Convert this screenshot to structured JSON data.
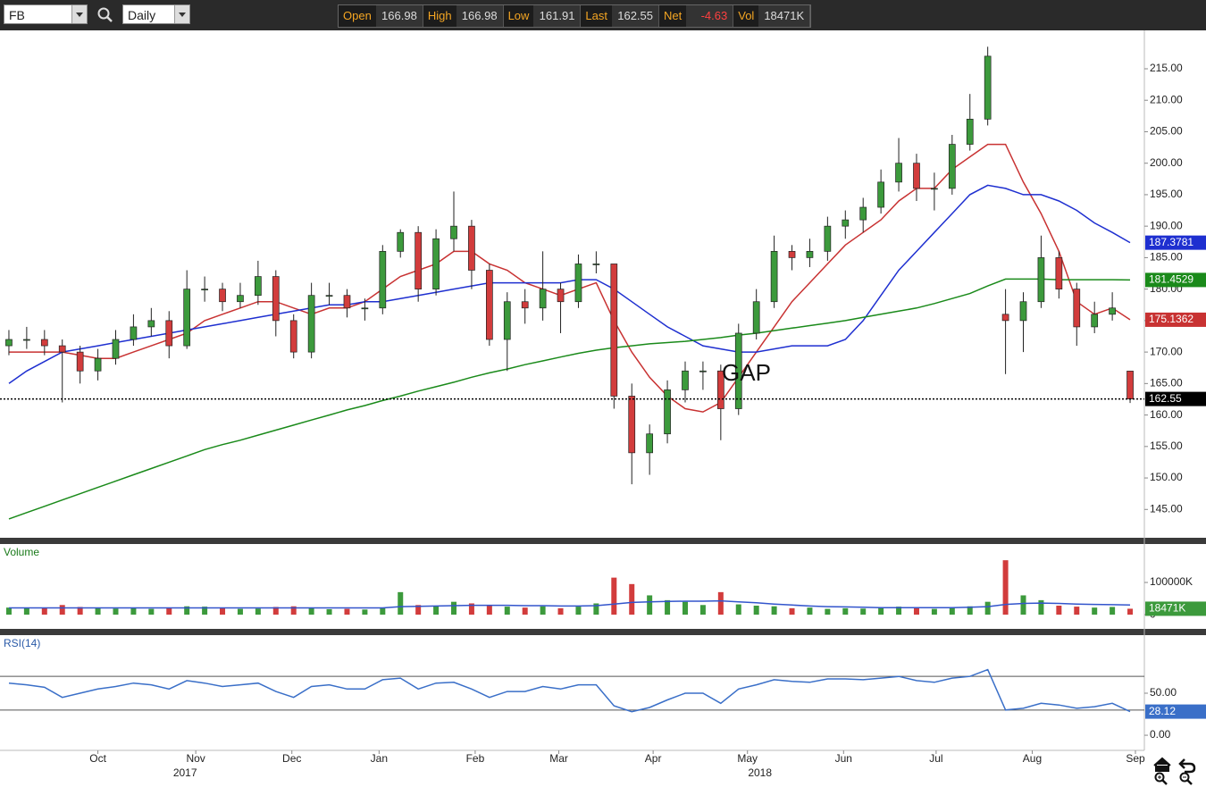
{
  "toolbar": {
    "symbol": "FB",
    "interval": "Daily",
    "fields": [
      {
        "label": "Open",
        "value": 166.98
      },
      {
        "label": "High",
        "value": 166.98
      },
      {
        "label": "Low",
        "value": 161.91
      },
      {
        "label": "Last",
        "value": 162.55
      },
      {
        "label": "Net",
        "value": -4.63
      },
      {
        "label": "Vol",
        "value": "18471K"
      }
    ]
  },
  "chart_data": [
    {
      "type": "candlestick",
      "categories": [
        null,
        null,
        null,
        null,
        null,
        null,
        null,
        null,
        null,
        null,
        null,
        null,
        null,
        null,
        null,
        null,
        null,
        null,
        null,
        null,
        null,
        null,
        null,
        null,
        null,
        null,
        null,
        null,
        null,
        null,
        null,
        null,
        null,
        null,
        null,
        null,
        null,
        null,
        null,
        null,
        null,
        null,
        null,
        null,
        null,
        null,
        null,
        null,
        null,
        null,
        null,
        null,
        null,
        null,
        null,
        null,
        null,
        null,
        null,
        null,
        null,
        null,
        null,
        null
      ],
      "open": [
        171,
        172,
        172,
        171,
        170,
        167,
        169,
        172,
        174,
        175,
        171,
        180,
        180,
        178,
        179,
        182,
        175,
        170,
        179,
        179,
        177,
        177,
        186,
        189,
        180,
        188,
        190,
        183,
        172,
        178,
        177,
        180,
        178,
        184,
        184,
        163,
        154,
        157,
        164,
        167,
        167,
        161,
        173,
        178,
        186,
        185,
        186,
        190,
        191,
        193,
        197,
        200,
        196,
        196,
        203,
        207,
        176,
        175,
        178,
        185,
        180,
        174,
        176,
        166.98
      ],
      "high": [
        173.5,
        174,
        173.5,
        172,
        171,
        170.5,
        173.5,
        176,
        177,
        176.5,
        183,
        182,
        181,
        181,
        184.5,
        183,
        176,
        181,
        181,
        180,
        178.5,
        187,
        189.5,
        190,
        189.5,
        195.5,
        191,
        184,
        179.5,
        180,
        186,
        181,
        185.5,
        186,
        184,
        165,
        158.5,
        165.5,
        168.5,
        168.5,
        168,
        174.5,
        180,
        188.5,
        187,
        188,
        191.5,
        192.5,
        194.5,
        199,
        204,
        201.5,
        198.5,
        204.5,
        211,
        218.5,
        180,
        179.5,
        188.5,
        186,
        181,
        178,
        179.5,
        166.98
      ],
      "low": [
        169.5,
        170.5,
        169.5,
        162,
        165,
        165.5,
        168,
        171,
        172.5,
        169,
        170.5,
        178,
        176.5,
        177,
        177.5,
        172.5,
        169,
        169,
        177.5,
        175.5,
        175,
        176,
        185,
        178,
        179,
        186,
        180,
        171,
        167,
        174.5,
        175,
        173,
        177,
        182.5,
        161,
        149,
        150.5,
        155.5,
        162,
        164,
        156,
        160,
        172,
        177,
        183,
        183.5,
        184.5,
        188,
        189,
        192,
        195.5,
        194,
        192.5,
        195,
        202,
        206,
        166.5,
        170,
        177,
        178.5,
        171,
        173,
        175,
        161.91
      ],
      "close": [
        172,
        172,
        171,
        170,
        167,
        169,
        172,
        174,
        175,
        171,
        180,
        180,
        178,
        179,
        182,
        175,
        170,
        179,
        179,
        177,
        177,
        186,
        189,
        180,
        188,
        190,
        183,
        172,
        178,
        177,
        180,
        178,
        184,
        184,
        163,
        154,
        157,
        164,
        167,
        167,
        161,
        173,
        178,
        186,
        185,
        186,
        190,
        191,
        193,
        197,
        200,
        196,
        196,
        203,
        207,
        217,
        175,
        178,
        185,
        180,
        174,
        176,
        177,
        162.55
      ],
      "up_color": "#3c9a3c",
      "down_color": "#d23c3c",
      "series": [
        {
          "color": "#c83232",
          "values": [
            170,
            170,
            170,
            170,
            169.5,
            169,
            169,
            170,
            171,
            172,
            173,
            175,
            176,
            177,
            178,
            178,
            177,
            176,
            177,
            177,
            178,
            180,
            182,
            183,
            184,
            186,
            186,
            184,
            183,
            181,
            180,
            179,
            180,
            181,
            175,
            170,
            166,
            163,
            161,
            160.5,
            162,
            166,
            170,
            174,
            178,
            181,
            184,
            187,
            189,
            191,
            194,
            196,
            196,
            199,
            201,
            203,
            203,
            197,
            192,
            186,
            178,
            176,
            177,
            175.1362
          ]
        },
        {
          "color": "#1e2fd0",
          "values": [
            165,
            167,
            168.5,
            170,
            170.5,
            171,
            171.5,
            172,
            172.5,
            173,
            173.5,
            174,
            174.5,
            175,
            175.5,
            176,
            176.5,
            177,
            177.5,
            177.5,
            178,
            178,
            178.5,
            179,
            179.5,
            180,
            180.5,
            181,
            181,
            181,
            181,
            181,
            181.5,
            181.5,
            180,
            178,
            176,
            174,
            172.5,
            171,
            170.5,
            170,
            170,
            170.5,
            171,
            171,
            171,
            172,
            175,
            179,
            183,
            186,
            189,
            192,
            195,
            196.5,
            196,
            195,
            195,
            194,
            192.5,
            190.5,
            189,
            187.3781
          ]
        },
        {
          "color": "#1a8a1a",
          "values": [
            143.5,
            144.5,
            145.5,
            146.5,
            147.5,
            148.5,
            149.5,
            150.5,
            151.5,
            152.5,
            153.5,
            154.5,
            155.3,
            156,
            156.8,
            157.6,
            158.4,
            159.2,
            160,
            160.8,
            161.5,
            162.3,
            163,
            163.8,
            164.5,
            165.2,
            166,
            166.7,
            167.3,
            168,
            168.6,
            169.2,
            169.8,
            170.3,
            170.7,
            171,
            171.3,
            171.5,
            171.7,
            172,
            172.3,
            172.7,
            173,
            173.4,
            173.8,
            174.2,
            174.6,
            175,
            175.5,
            176,
            176.5,
            177,
            177.7,
            178.5,
            179.3,
            180.5,
            181.6,
            181.6,
            181.6,
            181.5,
            181.5,
            181.5,
            181.5,
            181.4529
          ]
        }
      ],
      "ylim": [
        140.5,
        221.1
      ],
      "yticks": [
        {
          "value": 145,
          "label": "145.00"
        },
        {
          "value": 150,
          "label": "150.00"
        },
        {
          "value": 155,
          "label": "155.00"
        },
        {
          "value": 160,
          "label": "160.00"
        },
        {
          "value": 165,
          "label": "165.00"
        },
        {
          "value": 170,
          "label": "170.00"
        },
        {
          "value": 175,
          "label": "175.00"
        },
        {
          "value": 180,
          "label": "180.00"
        },
        {
          "value": 185,
          "label": "185.00"
        },
        {
          "value": 190,
          "label": "190.00"
        },
        {
          "value": 195,
          "label": "195.00"
        },
        {
          "value": 200,
          "label": "200.00"
        },
        {
          "value": 205,
          "label": "205.00"
        },
        {
          "value": 210,
          "label": "210.00"
        },
        {
          "value": 215,
          "label": "215.00"
        }
      ],
      "annotation": "GAP"
    },
    {
      "type": "bar",
      "title": "Volume",
      "categories": [
        null,
        null,
        null,
        null,
        null,
        null,
        null,
        null,
        null,
        null,
        null,
        null,
        null,
        null,
        null,
        null,
        null,
        null,
        null,
        null,
        null,
        null,
        null,
        null,
        null,
        null,
        null,
        null,
        null,
        null,
        null,
        null,
        null,
        null,
        null,
        null,
        null,
        null,
        null,
        null,
        null,
        null,
        null,
        null,
        null,
        null,
        null,
        null,
        null,
        null,
        null,
        null,
        null,
        null,
        null,
        null,
        null,
        null,
        null,
        null,
        null,
        null,
        null,
        null
      ],
      "values": [
        22000,
        20000,
        21000,
        30000,
        24000,
        20000,
        19000,
        22000,
        18000,
        20000,
        26000,
        25000,
        20000,
        18000,
        19000,
        24000,
        26000,
        20000,
        17000,
        18000,
        16000,
        22000,
        70000,
        30000,
        28000,
        40000,
        35000,
        30000,
        25000,
        22000,
        26000,
        20000,
        25000,
        35000,
        115000,
        95000,
        60000,
        45000,
        40000,
        30000,
        70000,
        32000,
        28000,
        26000,
        20000,
        22000,
        18000,
        20000,
        19000,
        22000,
        25000,
        20000,
        18000,
        21000,
        26000,
        40000,
        169000,
        60000,
        45000,
        28000,
        25000,
        22000,
        24000,
        18471
      ],
      "value_labels": [
        null,
        null,
        null,
        null,
        null,
        null,
        null,
        null,
        null,
        null,
        null,
        null,
        null,
        null,
        null,
        null,
        null,
        null,
        null,
        null,
        null,
        null,
        null,
        null,
        null,
        null,
        null,
        null,
        null,
        null,
        null,
        null,
        null,
        null,
        null,
        null,
        null,
        null,
        null,
        null,
        null,
        null,
        null,
        null,
        null,
        null,
        null,
        null,
        null,
        null,
        null,
        null,
        null,
        null,
        null,
        null,
        null,
        null,
        null,
        null,
        null,
        null,
        null,
        "18471K"
      ],
      "series": [
        {
          "color": "#3355cc",
          "values": [
            21000,
            21000,
            21000,
            21000,
            21000,
            21000,
            21000,
            21000,
            21000,
            21000,
            21000,
            21000,
            21000,
            21000,
            21000,
            21000,
            21000,
            21000,
            21000,
            21000,
            21000,
            21000,
            25000,
            26000,
            27000,
            28000,
            29000,
            29000,
            29000,
            28000,
            28000,
            27000,
            27000,
            28000,
            33000,
            38000,
            40000,
            41000,
            42000,
            42000,
            43000,
            40000,
            37000,
            33000,
            30000,
            27000,
            25000,
            24000,
            23000,
            22000,
            22000,
            22000,
            22000,
            22000,
            23000,
            25000,
            32000,
            35000,
            36000,
            35000,
            33000,
            32000,
            31000,
            30000
          ]
        }
      ],
      "ylim": [
        -33000,
        211000
      ],
      "yticks": [
        {
          "value": 100000,
          "label": "100000K"
        },
        {
          "value": 0,
          "label": "0"
        }
      ]
    },
    {
      "type": "line",
      "title": "RSI(14)",
      "categories": [
        null,
        null,
        null,
        null,
        null,
        null,
        null,
        null,
        null,
        null,
        null,
        null,
        null,
        null,
        null,
        null,
        null,
        null,
        null,
        null,
        null,
        null,
        null,
        null,
        null,
        null,
        null,
        null,
        null,
        null,
        null,
        null,
        null,
        null,
        null,
        null,
        null,
        null,
        null,
        null,
        null,
        null,
        null,
        null,
        null,
        null,
        null,
        null,
        null,
        null,
        null,
        null,
        null,
        null,
        null,
        null,
        null,
        null,
        null,
        null,
        null,
        null,
        null,
        null
      ],
      "color": "#3a6fc8",
      "values": [
        62,
        60,
        57,
        45,
        50,
        55,
        58,
        62,
        60,
        55,
        65,
        62,
        58,
        60,
        62,
        52,
        45,
        58,
        60,
        55,
        55,
        66,
        68,
        55,
        62,
        63,
        55,
        45,
        52,
        52,
        58,
        55,
        60,
        60,
        35,
        28,
        33,
        42,
        50,
        50,
        38,
        55,
        60,
        66,
        64,
        63,
        67,
        67,
        66,
        68,
        70,
        65,
        63,
        68,
        70,
        78,
        30,
        32,
        38,
        36,
        32,
        34,
        38,
        28.12
      ],
      "levels": [
        70,
        30
      ],
      "ylim": [
        -18,
        118
      ],
      "yticks": [
        {
          "value": 50,
          "label": "50.00"
        },
        {
          "value": 0,
          "label": "0.00"
        }
      ],
      "xticks": [
        {
          "value": 5,
          "label": "Oct"
        },
        {
          "value": 10.5,
          "label": "Nov"
        },
        {
          "value": 15.9,
          "label": "Dec"
        },
        {
          "value": 20.8,
          "label": "Jan"
        },
        {
          "value": 26.2,
          "label": "Feb"
        },
        {
          "value": 30.9,
          "label": "Mar"
        },
        {
          "value": 36.2,
          "label": "Apr"
        },
        {
          "value": 41.5,
          "label": "May"
        },
        {
          "value": 46.9,
          "label": "Jun"
        },
        {
          "value": 52.1,
          "label": "Jul"
        },
        {
          "value": 57.5,
          "label": "Aug"
        },
        {
          "value": 63.3,
          "label": "Sep"
        }
      ],
      "year_labels": [
        {
          "value": 9.9,
          "label": "2017"
        },
        {
          "value": 42.2,
          "label": "2018"
        }
      ]
    }
  ]
}
